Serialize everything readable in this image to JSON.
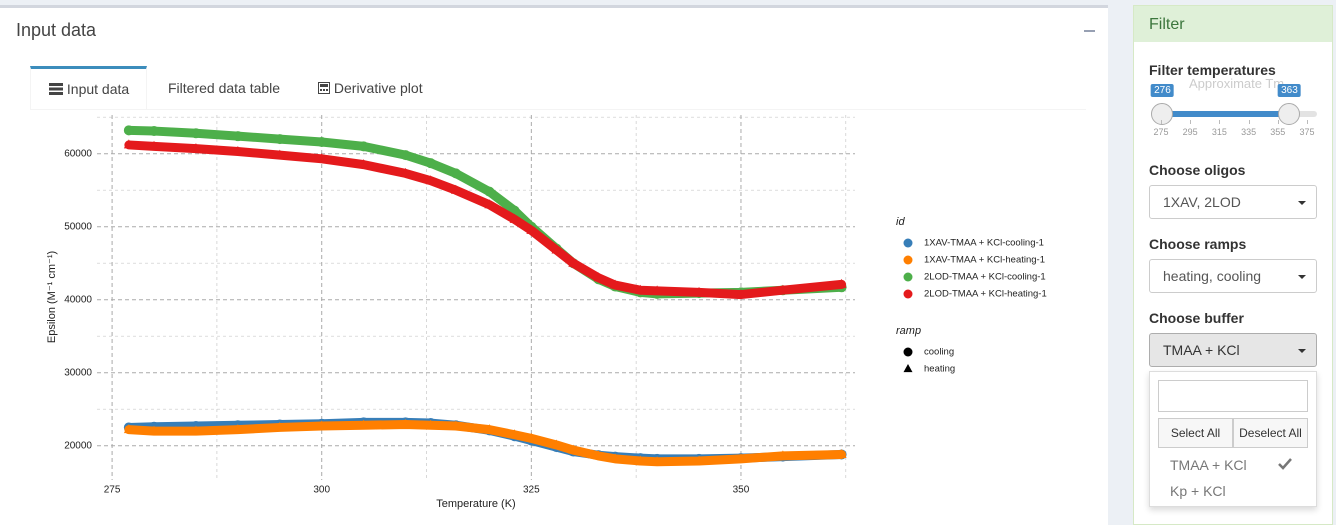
{
  "panel": {
    "title": "Input data",
    "tabs": [
      "Input data",
      "Filtered data table",
      "Derivative plot"
    ]
  },
  "chart_data": {
    "type": "scatter",
    "xlabel": "Temperature (K)",
    "ylabel": "Epsilon (M⁻¹ cm⁻¹)",
    "xlim": [
      273.2,
      363.6
    ],
    "ylim": [
      15300,
      65300
    ],
    "xticks": [
      275,
      300,
      325,
      350
    ],
    "yticks": [
      20000,
      30000,
      40000,
      50000,
      60000
    ],
    "minor_xticks": [
      287.5,
      312.5,
      337.5,
      362.5
    ],
    "minor_yticks": [
      25000,
      35000,
      45000,
      55000,
      65000
    ],
    "grid": true,
    "x": [
      277,
      280,
      285,
      290,
      295,
      300,
      305,
      310,
      313,
      316,
      320,
      323,
      325,
      328,
      330,
      333,
      335,
      338,
      340,
      345,
      350,
      355,
      362
    ],
    "legend_title": "id",
    "series": [
      {
        "name": "1XAV-TMAA + KCl-cooling-1",
        "color": "#377eb8",
        "shape": "circle",
        "values": [
          22500,
          22600,
          22700,
          22800,
          22900,
          23000,
          23200,
          23200,
          23100,
          22800,
          22100,
          21300,
          20700,
          19800,
          19200,
          18700,
          18500,
          18300,
          18200,
          18200,
          18300,
          18500,
          18800
        ]
      },
      {
        "name": "1XAV-TMAA + KCl-heating-1",
        "color": "#ff7f00",
        "shape": "triangle",
        "values": [
          22200,
          22000,
          22000,
          22200,
          22500,
          22700,
          22800,
          22900,
          22800,
          22700,
          22200,
          21500,
          21000,
          20100,
          19400,
          18600,
          18200,
          17900,
          17800,
          17900,
          18200,
          18600,
          18800
        ]
      },
      {
        "name": "2LOD-TMAA + KCl-cooling-1",
        "color": "#4daf4a",
        "shape": "circle",
        "values": [
          63200,
          63100,
          62800,
          62400,
          62000,
          61600,
          61000,
          59800,
          58700,
          57300,
          54800,
          52200,
          50000,
          47000,
          45000,
          42800,
          41800,
          41000,
          40800,
          40900,
          41000,
          41300,
          41700
        ]
      },
      {
        "name": "2LOD-TMAA + KCl-heating-1",
        "color": "#e41a1c",
        "shape": "triangle",
        "values": [
          61200,
          61000,
          60700,
          60300,
          59800,
          59300,
          58500,
          57300,
          56300,
          55000,
          53000,
          51000,
          49500,
          46800,
          45000,
          43000,
          42000,
          41300,
          41200,
          41000,
          40700,
          41300,
          42100
        ]
      }
    ],
    "shape_legend": {
      "title": "ramp",
      "entries": [
        {
          "name": "cooling",
          "shape": "circle"
        },
        {
          "name": "heating",
          "shape": "triangle"
        }
      ]
    }
  },
  "filter": {
    "title": "Filter",
    "background_label": "Approximate Tm",
    "temperatures": {
      "label": "Filter temperatures",
      "min": 276,
      "max": 363,
      "range": [
        275,
        375
      ],
      "ticks": [
        275,
        295,
        315,
        335,
        355,
        375
      ]
    },
    "oligos": {
      "label": "Choose oligos",
      "selected": "1XAV, 2LOD"
    },
    "ramps": {
      "label": "Choose ramps",
      "selected": "heating, cooling"
    },
    "buffer": {
      "label": "Choose buffer",
      "selected": "TMAA + KCl",
      "select_all": "Select All",
      "deselect_all": "Deselect All",
      "options": [
        "TMAA + KCl",
        "Kp + KCl"
      ]
    }
  }
}
